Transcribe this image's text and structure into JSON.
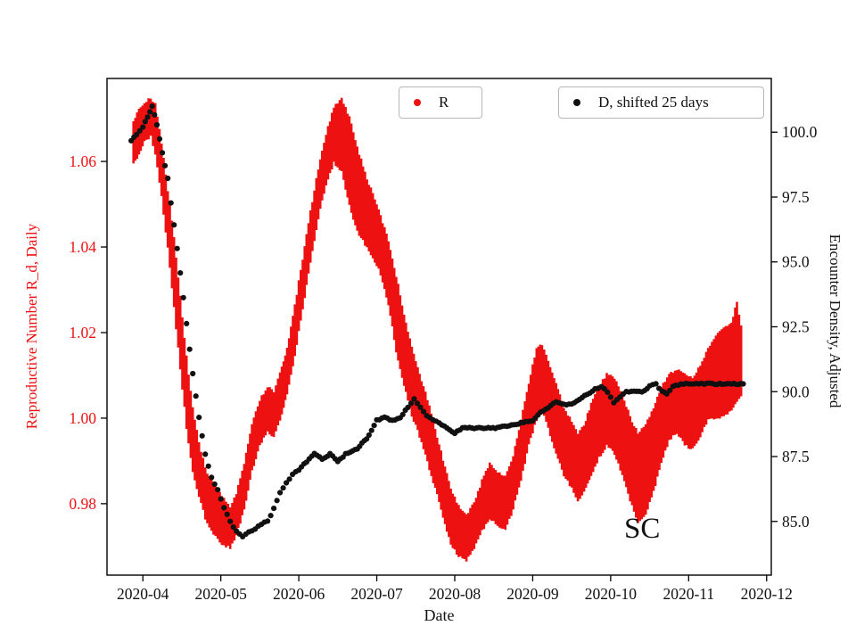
{
  "chart_data": {
    "type": "scatter",
    "title": "",
    "annotation": "SC",
    "xlabel": "Date",
    "x_unit": "decimal month of 2020 (4.0 = 2020-04-01)",
    "x_domain": [
      3.54,
      12.06
    ],
    "x_ticks": [
      {
        "v": 4,
        "label": "2020-04"
      },
      {
        "v": 5,
        "label": "2020-05"
      },
      {
        "v": 6,
        "label": "2020-06"
      },
      {
        "v": 7,
        "label": "2020-07"
      },
      {
        "v": 8,
        "label": "2020-08"
      },
      {
        "v": 9,
        "label": "2020-09"
      },
      {
        "v": 10,
        "label": "2020-10"
      },
      {
        "v": 11,
        "label": "2020-11"
      },
      {
        "v": 12,
        "label": "2020-12"
      }
    ],
    "y_left": {
      "label": "Reproductive Number R_d, Daily",
      "color": "#ee1111",
      "range": [
        0.9633,
        1.0794
      ],
      "ticks": [
        {
          "v": 0.98,
          "label": "0.98"
        },
        {
          "v": 1.0,
          "label": "1.00"
        },
        {
          "v": 1.02,
          "label": "1.02"
        },
        {
          "v": 1.04,
          "label": "1.04"
        },
        {
          "v": 1.06,
          "label": "1.06"
        }
      ]
    },
    "y_right": {
      "label": "Encounter Density, Adjusted",
      "color": "#111111",
      "range": [
        82.93,
        102.07
      ],
      "ticks": [
        {
          "v": 85.0,
          "label": "85.0"
        },
        {
          "v": 87.5,
          "label": "87.5"
        },
        {
          "v": 90.0,
          "label": "90.0"
        },
        {
          "v": 92.5,
          "label": "92.5"
        },
        {
          "v": 95.0,
          "label": "95.0"
        },
        {
          "v": 97.5,
          "label": "97.5"
        },
        {
          "v": 100.0,
          "label": "100.0"
        }
      ]
    },
    "series": [
      {
        "name": "R",
        "axis": "left",
        "color": "#ee1111",
        "style": "band",
        "band": [
          [
            3.88,
            1.06,
            1.069
          ],
          [
            3.95,
            1.062,
            1.072
          ],
          [
            4.02,
            1.065,
            1.0735
          ],
          [
            4.1,
            1.066,
            1.0745
          ],
          [
            4.16,
            1.062,
            1.073
          ],
          [
            4.24,
            1.052,
            1.064
          ],
          [
            4.32,
            1.04,
            1.053
          ],
          [
            4.4,
            1.026,
            1.042
          ],
          [
            4.48,
            1.012,
            1.028
          ],
          [
            4.56,
            0.998,
            1.014
          ],
          [
            4.64,
            0.988,
            1.002
          ],
          [
            4.72,
            0.982,
            0.994
          ],
          [
            4.8,
            0.977,
            0.988
          ],
          [
            4.88,
            0.974,
            0.985
          ],
          [
            4.96,
            0.972,
            0.983
          ],
          [
            5.04,
            0.9705,
            0.981
          ],
          [
            5.12,
            0.97,
            0.979
          ],
          [
            5.2,
            0.973,
            0.982
          ],
          [
            5.3,
            0.979,
            0.989
          ],
          [
            5.4,
            0.988,
            0.998
          ],
          [
            5.5,
            0.994,
            1.004
          ],
          [
            5.6,
            0.997,
            1.007
          ],
          [
            5.68,
            0.996,
            1.006
          ],
          [
            5.76,
            1.0,
            1.01
          ],
          [
            5.85,
            1.006,
            1.016
          ],
          [
            5.95,
            1.015,
            1.026
          ],
          [
            6.05,
            1.026,
            1.037
          ],
          [
            6.15,
            1.037,
            1.048
          ],
          [
            6.25,
            1.047,
            1.058
          ],
          [
            6.35,
            1.055,
            1.066
          ],
          [
            6.45,
            1.06,
            1.0725
          ],
          [
            6.55,
            1.058,
            1.0745
          ],
          [
            6.65,
            1.05,
            1.07
          ],
          [
            6.75,
            1.044,
            1.063
          ],
          [
            6.85,
            1.041,
            1.057
          ],
          [
            6.95,
            1.038,
            1.052
          ],
          [
            7.05,
            1.034,
            1.047
          ],
          [
            7.15,
            1.027,
            1.041
          ],
          [
            7.25,
            1.016,
            1.033
          ],
          [
            7.35,
            1.008,
            1.024
          ],
          [
            7.45,
            1.001,
            1.016
          ],
          [
            7.55,
            0.996,
            1.01
          ],
          [
            7.65,
            0.99,
            1.004
          ],
          [
            7.75,
            0.984,
            0.997
          ],
          [
            7.85,
            0.977,
            0.99
          ],
          [
            7.95,
            0.971,
            0.983
          ],
          [
            8.05,
            0.968,
            0.979
          ],
          [
            8.15,
            0.967,
            0.977
          ],
          [
            8.25,
            0.97,
            0.98
          ],
          [
            8.35,
            0.974,
            0.985
          ],
          [
            8.45,
            0.977,
            0.989
          ],
          [
            8.55,
            0.975,
            0.987
          ],
          [
            8.65,
            0.974,
            0.986
          ],
          [
            8.75,
            0.979,
            0.991
          ],
          [
            8.85,
            0.986,
            0.999
          ],
          [
            8.95,
            0.994,
            1.008
          ],
          [
            9.05,
            1.0,
            1.016
          ],
          [
            9.12,
            1.002,
            1.017
          ],
          [
            9.2,
            0.998,
            1.013
          ],
          [
            9.3,
            0.992,
            1.008
          ],
          [
            9.4,
            0.987,
            1.002
          ],
          [
            9.5,
            0.984,
            0.999
          ],
          [
            9.58,
            0.981,
            0.996
          ],
          [
            9.66,
            0.983,
            0.998
          ],
          [
            9.75,
            0.987,
            1.003
          ],
          [
            9.85,
            0.991,
            1.007
          ],
          [
            9.95,
            0.994,
            1.01
          ],
          [
            10.05,
            0.992,
            1.009
          ],
          [
            10.15,
            0.987,
            1.005
          ],
          [
            10.25,
            0.981,
            1.0
          ],
          [
            10.35,
            0.976,
            0.996
          ],
          [
            10.45,
            0.978,
            0.998
          ],
          [
            10.55,
            0.983,
            1.002
          ],
          [
            10.65,
            0.99,
            1.007
          ],
          [
            10.75,
            0.995,
            1.01
          ],
          [
            10.85,
            0.997,
            1.011
          ],
          [
            10.95,
            0.994,
            1.01
          ],
          [
            11.05,
            0.993,
            1.009
          ],
          [
            11.15,
            0.996,
            1.012
          ],
          [
            11.25,
            1.0,
            1.016
          ],
          [
            11.35,
            1.0,
            1.019
          ],
          [
            11.45,
            1.001,
            1.021
          ],
          [
            11.55,
            1.002,
            1.022
          ],
          [
            11.62,
            1.004,
            1.027
          ],
          [
            11.7,
            1.006,
            1.018
          ]
        ]
      },
      {
        "name": "D, shifted 25 days",
        "axis": "right",
        "color": "#111111",
        "style": "dots",
        "points": [
          [
            3.85,
            99.7
          ],
          [
            3.92,
            99.9
          ],
          [
            4.0,
            100.2
          ],
          [
            4.06,
            100.6
          ],
          [
            4.12,
            101.0
          ],
          [
            4.18,
            100.3
          ],
          [
            4.25,
            99.2
          ],
          [
            4.32,
            98.2
          ],
          [
            4.4,
            96.4
          ],
          [
            4.48,
            94.6
          ],
          [
            4.56,
            92.6
          ],
          [
            4.64,
            90.7
          ],
          [
            4.72,
            89.0
          ],
          [
            4.8,
            87.6
          ],
          [
            4.88,
            86.7
          ],
          [
            4.96,
            86.2
          ],
          [
            5.04,
            85.5
          ],
          [
            5.12,
            85.0
          ],
          [
            5.2,
            84.6
          ],
          [
            5.28,
            84.4
          ],
          [
            5.36,
            84.6
          ],
          [
            5.44,
            84.7
          ],
          [
            5.52,
            84.9
          ],
          [
            5.6,
            85.0
          ],
          [
            5.68,
            85.5
          ],
          [
            5.76,
            86.1
          ],
          [
            5.84,
            86.5
          ],
          [
            5.92,
            86.8
          ],
          [
            6.0,
            87.0
          ],
          [
            6.1,
            87.3
          ],
          [
            6.2,
            87.6
          ],
          [
            6.3,
            87.4
          ],
          [
            6.4,
            87.6
          ],
          [
            6.5,
            87.3
          ],
          [
            6.6,
            87.6
          ],
          [
            6.75,
            87.8
          ],
          [
            6.9,
            88.3
          ],
          [
            7.0,
            88.9
          ],
          [
            7.1,
            89.0
          ],
          [
            7.2,
            88.9
          ],
          [
            7.3,
            89.0
          ],
          [
            7.4,
            89.4
          ],
          [
            7.48,
            89.7
          ],
          [
            7.56,
            89.4
          ],
          [
            7.64,
            89.1
          ],
          [
            7.72,
            88.9
          ],
          [
            7.8,
            88.8
          ],
          [
            7.9,
            88.6
          ],
          [
            8.0,
            88.4
          ],
          [
            8.1,
            88.6
          ],
          [
            8.25,
            88.6
          ],
          [
            8.4,
            88.6
          ],
          [
            8.55,
            88.6
          ],
          [
            8.7,
            88.7
          ],
          [
            8.85,
            88.8
          ],
          [
            9.0,
            88.9
          ],
          [
            9.1,
            89.2
          ],
          [
            9.2,
            89.4
          ],
          [
            9.3,
            89.6
          ],
          [
            9.4,
            89.5
          ],
          [
            9.5,
            89.5
          ],
          [
            9.6,
            89.7
          ],
          [
            9.7,
            89.9
          ],
          [
            9.8,
            90.1
          ],
          [
            9.88,
            90.2
          ],
          [
            9.96,
            90.0
          ],
          [
            10.04,
            89.6
          ],
          [
            10.12,
            89.8
          ],
          [
            10.2,
            90.0
          ],
          [
            10.3,
            90.0
          ],
          [
            10.4,
            90.0
          ],
          [
            10.5,
            90.2
          ],
          [
            10.58,
            90.3
          ],
          [
            10.66,
            90.0
          ],
          [
            10.72,
            89.9
          ],
          [
            10.8,
            90.2
          ],
          [
            10.9,
            90.3
          ],
          [
            11.0,
            90.3
          ],
          [
            11.2,
            90.3
          ],
          [
            11.4,
            90.3
          ],
          [
            11.55,
            90.3
          ],
          [
            11.7,
            90.3
          ]
        ]
      }
    ]
  }
}
